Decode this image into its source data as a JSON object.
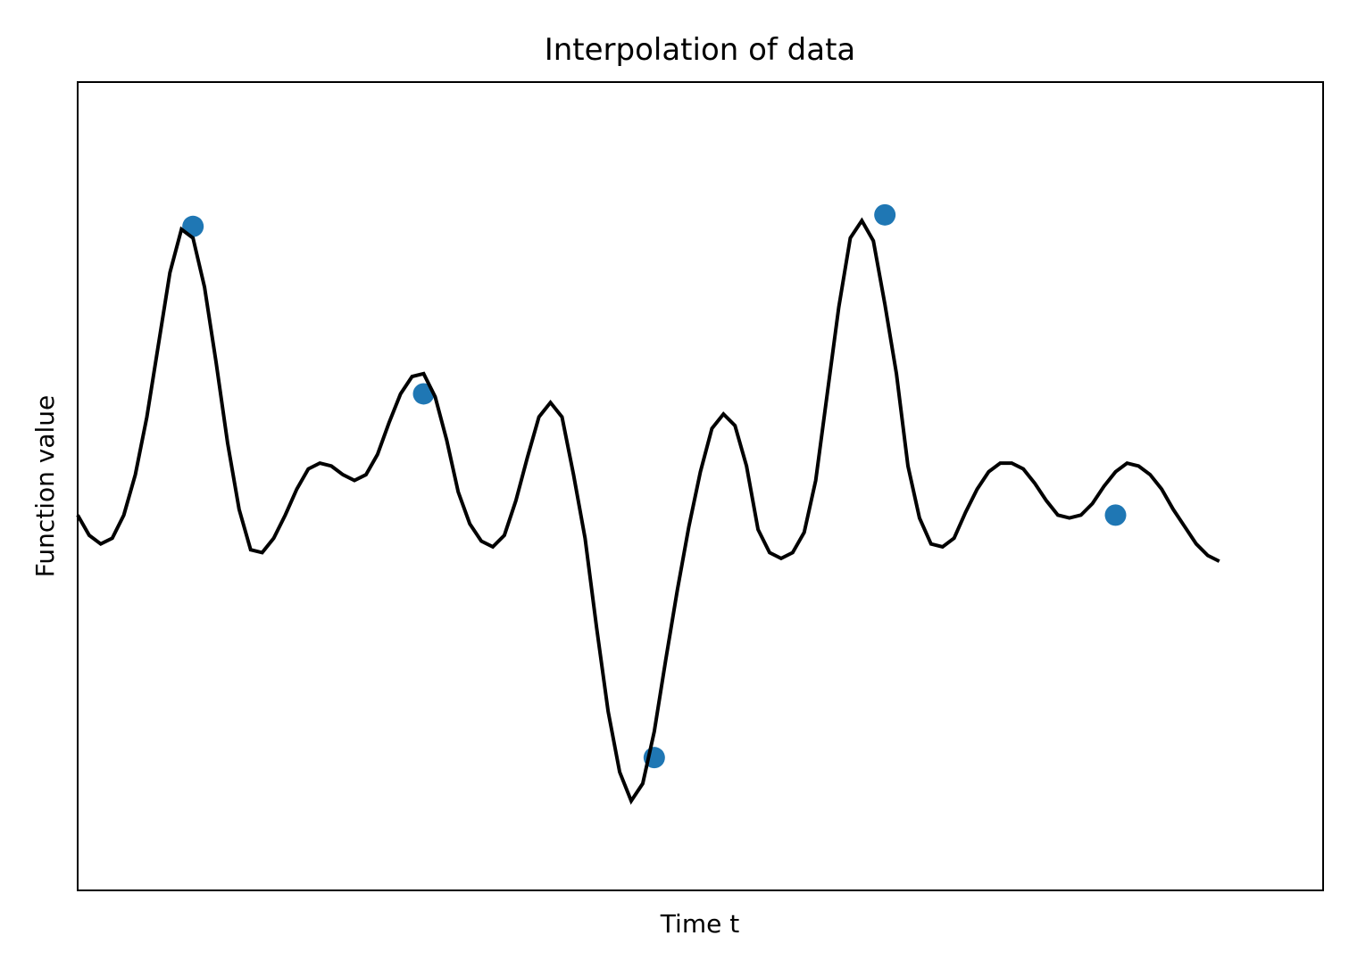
{
  "chart_data": {
    "type": "line",
    "title": "Interpolation of data",
    "xlabel": "Time t",
    "ylabel": "Function value",
    "xlim": [
      0,
      5.4
    ],
    "ylim": [
      -1.3,
      1.5
    ],
    "grid": false,
    "legend": "none",
    "colors": {
      "line": "#000000",
      "points": "#1f77b4",
      "frame": "#000000",
      "background": "#ffffff"
    },
    "series": [
      {
        "type": "line",
        "x": [
          0.0,
          0.05,
          0.1,
          0.15,
          0.2,
          0.25,
          0.3,
          0.35,
          0.4,
          0.45,
          0.5,
          0.55,
          0.6,
          0.65,
          0.7,
          0.75,
          0.8,
          0.85,
          0.9,
          0.95,
          1.0,
          1.05,
          1.1,
          1.15,
          1.2,
          1.25,
          1.3,
          1.35,
          1.4,
          1.45,
          1.5,
          1.55,
          1.6,
          1.65,
          1.7,
          1.75,
          1.8,
          1.85,
          1.9,
          1.95,
          2.0,
          2.05,
          2.1,
          2.15,
          2.2,
          2.25,
          2.3,
          2.35,
          2.4,
          2.45,
          2.5,
          2.55,
          2.6,
          2.65,
          2.7,
          2.75,
          2.8,
          2.85,
          2.9,
          2.95,
          3.0,
          3.05,
          3.1,
          3.15,
          3.2,
          3.25,
          3.3,
          3.35,
          3.4,
          3.45,
          3.5,
          3.55,
          3.6,
          3.65,
          3.7,
          3.75,
          3.8,
          3.85,
          3.9,
          3.95,
          4.0,
          4.05,
          4.1,
          4.15,
          4.2,
          4.25,
          4.3,
          4.35,
          4.4,
          4.45,
          4.5,
          4.55,
          4.6,
          4.65,
          4.7,
          4.75,
          4.8,
          4.85,
          4.9,
          4.95
        ],
        "y": [
          0.0,
          -0.07,
          -0.1,
          -0.08,
          0.0,
          0.14,
          0.34,
          0.59,
          0.84,
          0.99,
          0.96,
          0.79,
          0.53,
          0.25,
          0.02,
          -0.12,
          -0.13,
          -0.08,
          0.0,
          0.09,
          0.16,
          0.18,
          0.17,
          0.14,
          0.12,
          0.14,
          0.21,
          0.32,
          0.42,
          0.48,
          0.49,
          0.41,
          0.26,
          0.08,
          -0.03,
          -0.09,
          -0.11,
          -0.07,
          0.05,
          0.2,
          0.34,
          0.39,
          0.34,
          0.14,
          -0.08,
          -0.39,
          -0.68,
          -0.89,
          -0.99,
          -0.93,
          -0.75,
          -0.5,
          -0.26,
          -0.04,
          0.15,
          0.3,
          0.35,
          0.31,
          0.17,
          -0.05,
          -0.13,
          -0.15,
          -0.13,
          -0.06,
          0.12,
          0.42,
          0.72,
          0.96,
          1.02,
          0.95,
          0.73,
          0.49,
          0.17,
          -0.01,
          -0.1,
          -0.11,
          -0.08,
          0.01,
          0.09,
          0.15,
          0.18,
          0.18,
          0.16,
          0.11,
          0.05,
          0.0,
          -0.01,
          0.0,
          0.04,
          0.1,
          0.15,
          0.18,
          0.17,
          0.14,
          0.09,
          0.02,
          -0.04,
          -0.1,
          -0.14,
          -0.16
        ]
      },
      {
        "type": "scatter",
        "x": [
          0.5,
          1.5,
          2.5,
          3.5,
          4.5
        ],
        "y": [
          1.0,
          0.42,
          -0.84,
          1.04,
          0.0
        ]
      }
    ]
  }
}
